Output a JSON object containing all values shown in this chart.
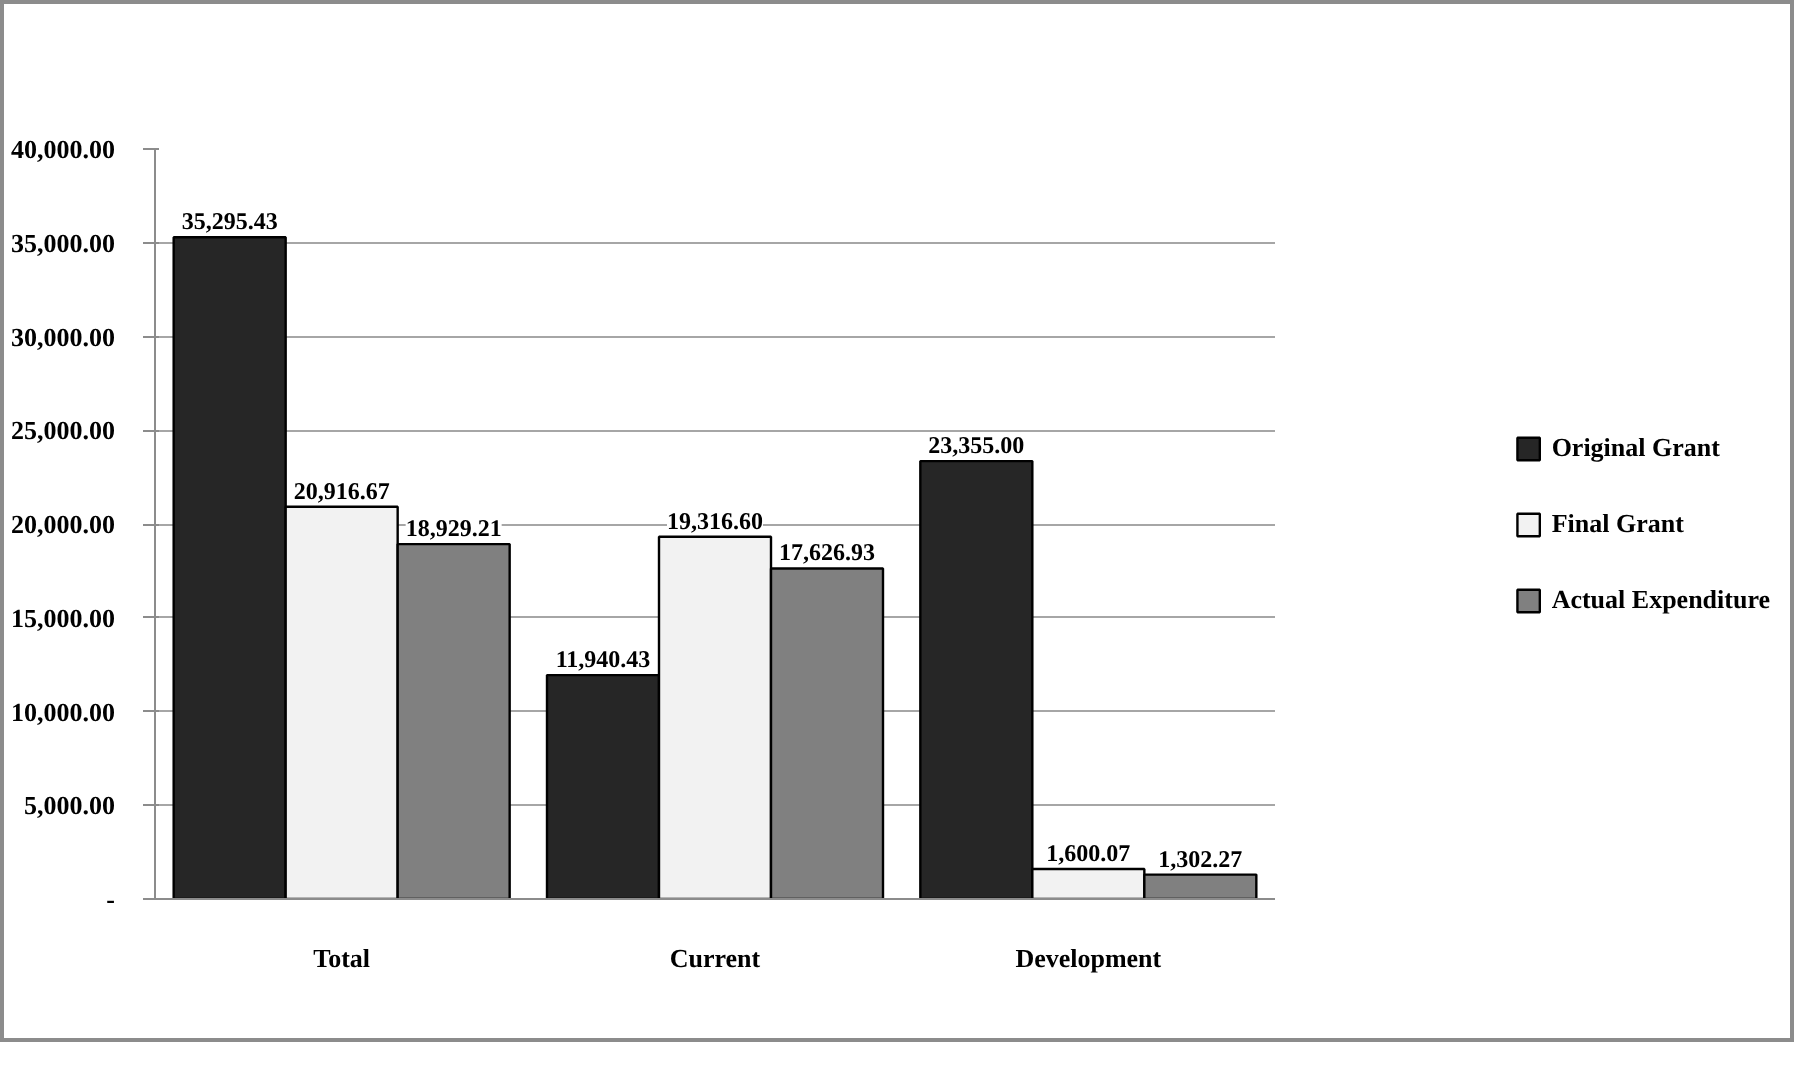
{
  "chart_data": {
    "type": "bar",
    "categories": [
      "Total",
      "Current",
      "Development"
    ],
    "series": [
      {
        "name": "Original Grant",
        "color": "#262626",
        "values": [
          35295.43,
          11940.43,
          23355.0
        ],
        "value_labels": [
          "35,295.43",
          "11,940.43",
          "23,355.00"
        ]
      },
      {
        "name": "Final Grant",
        "color": "#f2f2f2",
        "values": [
          20916.67,
          19316.6,
          1600.07
        ],
        "value_labels": [
          "20,916.67",
          "19,316.60",
          "1,600.07"
        ]
      },
      {
        "name": "Actual Expenditure",
        "color": "#808080",
        "values": [
          18929.21,
          17626.93,
          1302.27
        ],
        "value_labels": [
          "18,929.21",
          "17,626.93",
          "1,302.27"
        ]
      }
    ],
    "ylim": [
      0,
      40000
    ],
    "yticks": [
      {
        "value": 0,
        "label": "-"
      },
      {
        "value": 5000,
        "label": "5,000.00"
      },
      {
        "value": 10000,
        "label": "10,000.00"
      },
      {
        "value": 15000,
        "label": "15,000.00"
      },
      {
        "value": 20000,
        "label": "20,000.00"
      },
      {
        "value": 25000,
        "label": "25,000.00"
      },
      {
        "value": 30000,
        "label": "30,000.00"
      },
      {
        "value": 35000,
        "label": "35,000.00"
      },
      {
        "value": 40000,
        "label": "40,000.00"
      }
    ],
    "grid": "y",
    "legend": "right"
  }
}
